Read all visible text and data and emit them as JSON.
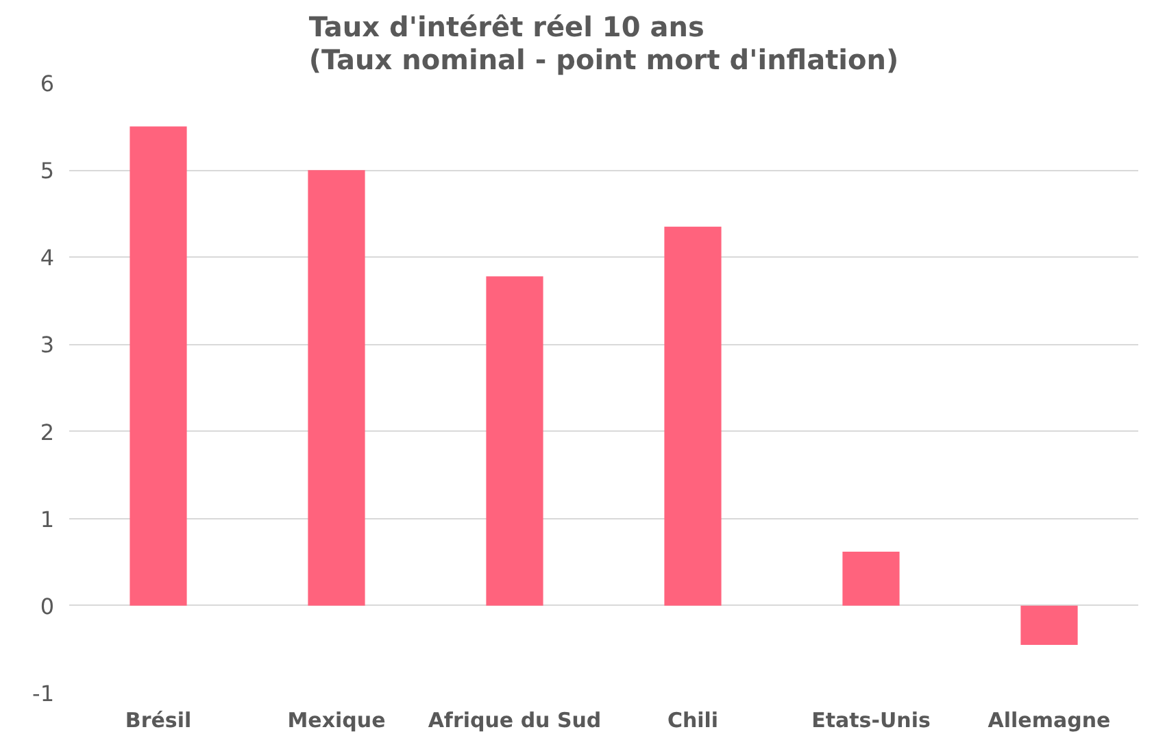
{
  "chart_data": {
    "type": "bar",
    "title": "Taux d'intérêt réel 10 ans\n(Taux nominal - point mort d'inflation)",
    "categories": [
      "Brésil",
      "Mexique",
      "Afrique du Sud",
      "Chili",
      "Etats-Unis",
      "Allemagne"
    ],
    "values": [
      5.5,
      5.0,
      3.78,
      4.35,
      0.62,
      -0.45
    ],
    "color": "#ff637d",
    "ylim": [
      -1,
      6
    ],
    "yticks": [
      -1,
      0,
      1,
      2,
      3,
      4,
      5,
      6
    ],
    "grid": "y"
  }
}
